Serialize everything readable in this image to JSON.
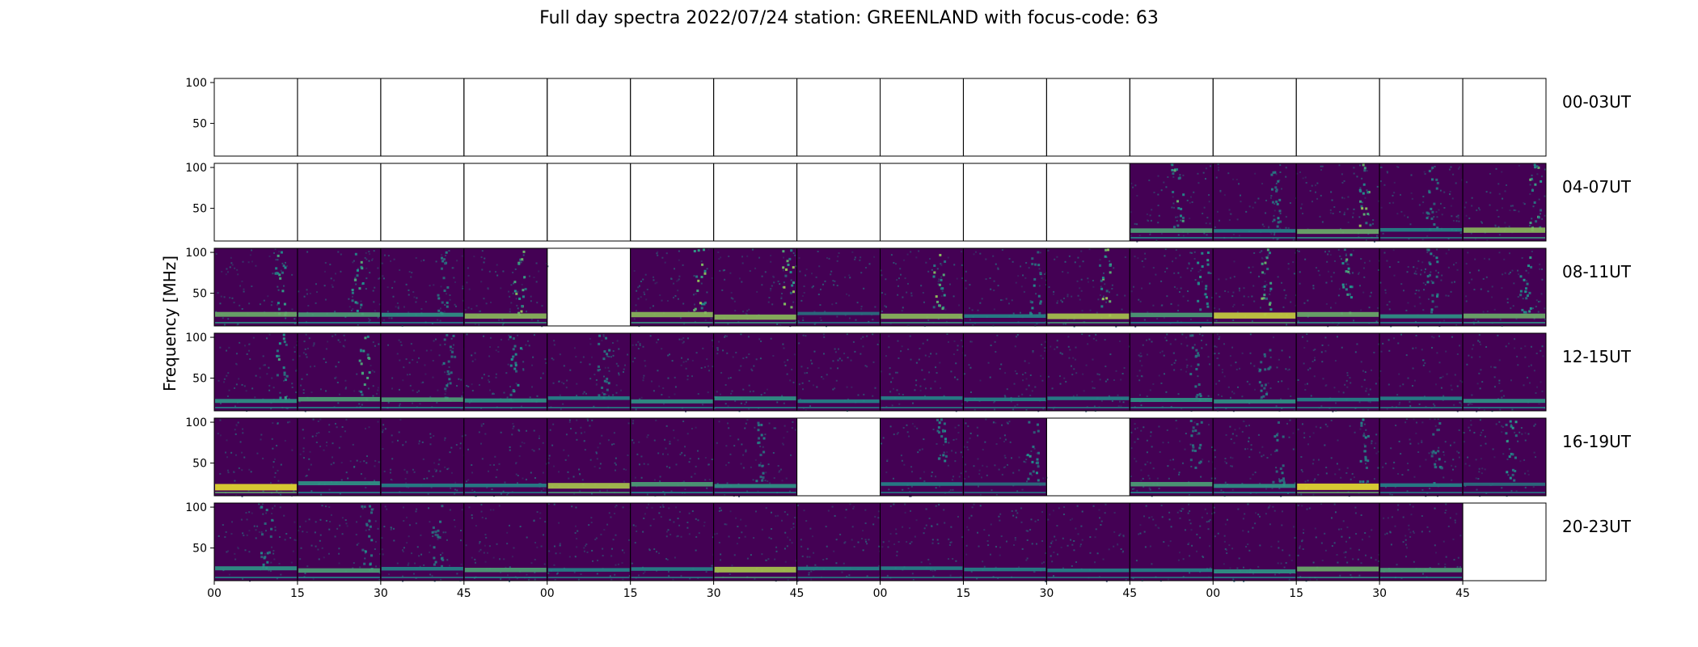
{
  "chart_data": {
    "type": "heatmap",
    "title": "Full day spectra 2022/07/24 station: GREENLAND with focus-code: 63",
    "ylabel": "Frequency [MHz]",
    "xlabel": "",
    "ylim": [
      10,
      105
    ],
    "y_ticks": [
      "100",
      "50"
    ],
    "x_ticks": [
      "00",
      "15",
      "30",
      "45",
      "00",
      "15",
      "30",
      "45",
      "00",
      "15",
      "30",
      "45",
      "00",
      "15",
      "30",
      "45"
    ],
    "colormap": "viridis",
    "colors": {
      "low": "#440154",
      "mid": "#21918c",
      "high": "#fde725",
      "frame": "#000000"
    },
    "columns_per_row": 16,
    "panel_minutes": 15,
    "rows": [
      {
        "label": "00-03UT",
        "panels": [
          0,
          0,
          0,
          0,
          0,
          0,
          0,
          0,
          0,
          0,
          0,
          0,
          0,
          0,
          0,
          0
        ],
        "activity": [
          0,
          0,
          0,
          0,
          0,
          0,
          0,
          0,
          0,
          0,
          0,
          0,
          0,
          0,
          0,
          0
        ],
        "band": [
          0,
          0,
          0,
          0,
          0,
          0,
          0,
          0,
          0,
          0,
          0,
          0,
          0,
          0,
          0,
          0
        ]
      },
      {
        "label": "04-07UT",
        "panels": [
          0,
          0,
          0,
          0,
          0,
          0,
          0,
          0,
          0,
          0,
          0,
          1,
          1,
          1,
          1,
          1
        ],
        "activity": [
          0,
          0,
          0,
          0,
          0,
          0,
          0,
          0,
          0,
          0,
          0,
          0.6,
          0.3,
          0.8,
          0.2,
          0.6
        ],
        "band": [
          0,
          0,
          0,
          0,
          0,
          0,
          0,
          0,
          0,
          0,
          0,
          0.5,
          0.3,
          0.6,
          0.3,
          0.7
        ]
      },
      {
        "label": "08-11UT",
        "panels": [
          1,
          1,
          1,
          1,
          0,
          1,
          1,
          1,
          1,
          1,
          1,
          1,
          1,
          1,
          1,
          1
        ],
        "activity": [
          0.5,
          0.6,
          0.2,
          0.8,
          0,
          0.8,
          0.8,
          0.1,
          0.8,
          0.3,
          0.8,
          0.4,
          0.7,
          0.6,
          0.3,
          0.4
        ],
        "band": [
          0.6,
          0.5,
          0.4,
          0.7,
          0,
          0.7,
          0.7,
          0.2,
          0.7,
          0.3,
          0.8,
          0.5,
          0.9,
          0.6,
          0.4,
          0.6
        ]
      },
      {
        "label": "12-15UT",
        "panels": [
          1,
          1,
          1,
          1,
          1,
          1,
          1,
          1,
          1,
          1,
          1,
          1,
          1,
          1,
          1,
          1
        ],
        "activity": [
          0.5,
          0.6,
          0.2,
          0.4,
          0.2,
          0.1,
          0.1,
          0.1,
          0.1,
          0.1,
          0.1,
          0.2,
          0.2,
          0.1,
          0.1,
          0.1
        ],
        "band": [
          0.4,
          0.5,
          0.5,
          0.4,
          0.3,
          0.4,
          0.4,
          0.3,
          0.3,
          0.3,
          0.3,
          0.4,
          0.4,
          0.3,
          0.3,
          0.4
        ]
      },
      {
        "label": "16-19UT",
        "panels": [
          1,
          1,
          1,
          1,
          1,
          1,
          1,
          0,
          1,
          1,
          0,
          1,
          1,
          1,
          1,
          1
        ],
        "activity": [
          0.1,
          0.1,
          0.1,
          0.1,
          0.1,
          0.1,
          0.2,
          0,
          0.3,
          0.4,
          0,
          0.2,
          0.2,
          0.3,
          0.2,
          0.4
        ],
        "band": [
          1.0,
          0.4,
          0.3,
          0.3,
          0.8,
          0.5,
          0.4,
          0,
          0.3,
          0.2,
          0,
          0.5,
          0.4,
          1.0,
          0.3,
          0.2
        ]
      },
      {
        "label": "20-23UT",
        "panels": [
          1,
          1,
          1,
          1,
          1,
          1,
          1,
          1,
          1,
          1,
          1,
          1,
          1,
          1,
          1,
          0
        ],
        "activity": [
          0.3,
          0.3,
          0.2,
          0.1,
          0.1,
          0.1,
          0.1,
          0.1,
          0.1,
          0.1,
          0.1,
          0.1,
          0.1,
          0.1,
          0.1,
          0
        ],
        "band": [
          0.4,
          0.5,
          0.3,
          0.5,
          0.3,
          0.3,
          0.8,
          0.3,
          0.3,
          0.3,
          0.3,
          0.3,
          0.4,
          0.6,
          0.5,
          0
        ]
      }
    ]
  }
}
